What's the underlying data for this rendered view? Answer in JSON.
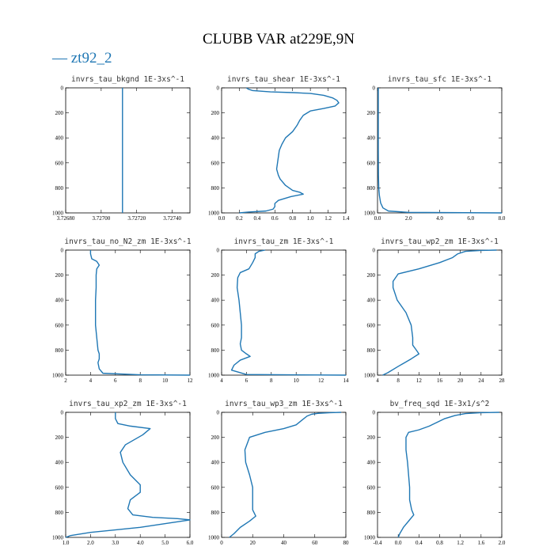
{
  "title": "CLUBB VAR at229E,9N",
  "legend": {
    "label": "— zt92_2",
    "color": "#1f77b4"
  },
  "chart_data": [
    {
      "type": "line",
      "title": "invrs_tau_bkgnd 1E-3xs^-1",
      "xlim": [
        3.7268,
        3.7275
      ],
      "ylim": [
        0,
        1000
      ],
      "y_inverted": true,
      "xticks": [
        3.7268,
        3.727,
        3.7272,
        3.7274
      ],
      "xtick_labels": [
        "3.72680",
        "3.72700",
        "3.72720",
        "3.72740"
      ],
      "yticks": [
        0,
        200,
        400,
        600,
        800,
        1000
      ],
      "series": [
        {
          "x": [
            3.72712,
            3.72712
          ],
          "y": [
            0,
            1000
          ]
        }
      ]
    },
    {
      "type": "line",
      "title": "invrs_tau_shear 1E-3xs^-1",
      "xlim": [
        0,
        1.4
      ],
      "ylim": [
        0,
        1000
      ],
      "y_inverted": true,
      "xticks": [
        0,
        0.2,
        0.4,
        0.6,
        0.8,
        1.0,
        1.2,
        1.4
      ],
      "xtick_labels": [
        "0.0",
        "0.2",
        "0.4",
        "0.6",
        "0.8",
        "1.0",
        "1.2",
        "1.4"
      ],
      "yticks": [
        0,
        200,
        400,
        600,
        800,
        1000
      ],
      "series": [
        {
          "x": [
            0.28,
            0.3,
            0.35,
            0.55,
            0.8,
            1.0,
            1.15,
            1.25,
            1.3,
            1.32,
            1.28,
            1.15,
            1.0,
            0.92,
            0.88,
            0.85,
            0.8,
            0.72,
            0.68,
            0.65,
            0.64,
            0.63,
            0.62,
            0.64,
            0.66,
            0.72,
            0.8,
            0.88,
            0.92,
            0.78,
            0.64,
            0.6,
            0.6,
            0.58,
            0.5,
            0.3,
            0.2
          ],
          "y": [
            0,
            10,
            22,
            32,
            38,
            45,
            60,
            80,
            100,
            120,
            145,
            165,
            185,
            220,
            260,
            300,
            350,
            400,
            450,
            500,
            550,
            600,
            650,
            700,
            730,
            780,
            820,
            835,
            850,
            870,
            900,
            925,
            950,
            970,
            985,
            993,
            1000
          ]
        }
      ]
    },
    {
      "type": "line",
      "title": "invrs_tau_sfc 1E-3xs^-1",
      "xlim": [
        0,
        8.0
      ],
      "ylim": [
        0,
        1000
      ],
      "y_inverted": true,
      "xticks": [
        0,
        2,
        4,
        6,
        8
      ],
      "xtick_labels": [
        "0.0",
        "2.0",
        "4.0",
        "6.0",
        "8.0"
      ],
      "yticks": [
        0,
        200,
        400,
        600,
        800,
        1000
      ],
      "series": [
        {
          "x": [
            0.05,
            0.05,
            0.06,
            0.08,
            0.12,
            0.2,
            0.35,
            0.7,
            2.0,
            8.0
          ],
          "y": [
            0,
            500,
            700,
            800,
            860,
            920,
            960,
            985,
            996,
            1000
          ]
        }
      ]
    },
    {
      "type": "line",
      "title": "invrs_tau_no_N2_zm 1E-3xs^-1",
      "xlim": [
        2,
        12
      ],
      "ylim": [
        0,
        1000
      ],
      "y_inverted": true,
      "xticks": [
        2,
        4,
        6,
        8,
        10,
        12
      ],
      "xtick_labels": [
        "2",
        "4",
        "6",
        "8",
        "10",
        "12"
      ],
      "yticks": [
        0,
        200,
        400,
        600,
        800,
        1000
      ],
      "series": [
        {
          "x": [
            4.0,
            4.0,
            4.1,
            4.5,
            4.7,
            4.5,
            4.45,
            4.45,
            4.4,
            4.4,
            4.4,
            4.5,
            4.6,
            4.7,
            4.7,
            4.6,
            4.7,
            5.0,
            8.0,
            12.0
          ],
          "y": [
            0,
            30,
            70,
            90,
            120,
            150,
            200,
            300,
            400,
            500,
            600,
            700,
            800,
            830,
            870,
            900,
            950,
            985,
            997,
            1000
          ]
        }
      ]
    },
    {
      "type": "line",
      "title": "invrs_tau_zm 1E-3xs^-1",
      "xlim": [
        4,
        14
      ],
      "ylim": [
        0,
        1000
      ],
      "y_inverted": true,
      "xticks": [
        4,
        6,
        8,
        10,
        12,
        14
      ],
      "xtick_labels": [
        "4",
        "6",
        "8",
        "10",
        "12",
        "14"
      ],
      "yticks": [
        0,
        200,
        400,
        600,
        800,
        1000
      ],
      "series": [
        {
          "x": [
            7.5,
            7.0,
            6.7,
            6.7,
            6.5,
            6.2,
            5.5,
            5.3,
            5.25,
            5.4,
            5.5,
            5.6,
            5.6,
            5.5,
            5.6,
            6.0,
            6.3,
            5.5,
            5.0,
            4.8,
            6.0,
            14.0
          ],
          "y": [
            0,
            10,
            30,
            60,
            100,
            150,
            180,
            220,
            300,
            400,
            500,
            600,
            700,
            750,
            800,
            830,
            850,
            880,
            920,
            960,
            995,
            1000
          ]
        }
      ]
    },
    {
      "type": "line",
      "title": "invrs_tau_wp2_zm 1E-3xs^-1",
      "xlim": [
        4,
        28
      ],
      "ylim": [
        0,
        1000
      ],
      "y_inverted": true,
      "xticks": [
        4,
        8,
        12,
        16,
        20,
        24,
        28
      ],
      "xtick_labels": [
        "4",
        "8",
        "12",
        "16",
        "20",
        "24",
        "28"
      ],
      "yticks": [
        0,
        200,
        400,
        600,
        800,
        1000
      ],
      "series": [
        {
          "x": [
            27.0,
            24.0,
            21.0,
            19.5,
            18.5,
            16.0,
            12.0,
            8.0,
            7.0,
            7.0,
            7.8,
            9.5,
            10.5,
            10.8,
            10.8,
            11.5,
            12.0,
            10.5,
            8.0,
            6.0,
            5.0
          ],
          "y": [
            0,
            3,
            10,
            30,
            60,
            100,
            150,
            190,
            250,
            300,
            400,
            500,
            600,
            700,
            760,
            800,
            830,
            870,
            930,
            980,
            1000
          ]
        }
      ]
    },
    {
      "type": "line",
      "title": "invrs_tau_xp2_zm 1E-3xs^-1",
      "xlim": [
        1.0,
        6.0
      ],
      "ylim": [
        0,
        1000
      ],
      "y_inverted": true,
      "xticks": [
        1,
        2,
        3,
        4,
        5,
        6
      ],
      "xtick_labels": [
        "1.0",
        "2.0",
        "3.0",
        "4.0",
        "5.0",
        "6.0"
      ],
      "yticks": [
        0,
        200,
        400,
        600,
        800,
        1000
      ],
      "series": [
        {
          "x": [
            3.0,
            3.0,
            3.1,
            3.6,
            4.4,
            4.1,
            3.4,
            3.2,
            3.3,
            3.6,
            4.0,
            4.0,
            3.6,
            3.5,
            3.7,
            4.5,
            5.5,
            6.0,
            4.0,
            2.0,
            1.2,
            1.0
          ],
          "y": [
            0,
            50,
            90,
            110,
            130,
            180,
            260,
            320,
            400,
            500,
            580,
            640,
            700,
            770,
            820,
            840,
            850,
            860,
            920,
            960,
            985,
            1000
          ]
        }
      ]
    },
    {
      "type": "line",
      "title": "invrs_tau_wp3_zm 1E-3xs^-1",
      "xlim": [
        0,
        80
      ],
      "ylim": [
        0,
        1000
      ],
      "y_inverted": true,
      "xticks": [
        0,
        20,
        40,
        60,
        80
      ],
      "xtick_labels": [
        "0",
        "20",
        "40",
        "60",
        "80"
      ],
      "yticks": [
        0,
        200,
        400,
        600,
        800,
        1000
      ],
      "series": [
        {
          "x": [
            77.0,
            70.0,
            62.0,
            58.0,
            55.0,
            52.0,
            48.0,
            40.0,
            28.0,
            18.0,
            15.0,
            15.5,
            18.0,
            20.0,
            20.0,
            20.0,
            22.0,
            18.0,
            12.0,
            8.0,
            5.0
          ],
          "y": [
            0,
            3,
            8,
            15,
            30,
            60,
            100,
            130,
            160,
            200,
            300,
            400,
            500,
            600,
            700,
            780,
            830,
            870,
            920,
            970,
            1000
          ]
        }
      ]
    },
    {
      "type": "line",
      "title": "bv_freq_sqd 1E-3x1/s^2",
      "xlim": [
        -0.4,
        2.0
      ],
      "ylim": [
        0,
        1000
      ],
      "y_inverted": true,
      "xticks": [
        -0.4,
        0,
        0.4,
        0.8,
        1.2,
        1.6,
        2.0
      ],
      "xtick_labels": [
        "-0.4",
        "0.0",
        "0.4",
        "0.8",
        "1.2",
        "1.6",
        "2.0"
      ],
      "yticks": [
        0,
        200,
        400,
        600,
        800,
        1000
      ],
      "series": [
        {
          "x": [
            1.95,
            1.6,
            1.3,
            1.1,
            0.9,
            0.75,
            0.6,
            0.4,
            0.2,
            0.15,
            0.15,
            0.18,
            0.2,
            0.22,
            0.22,
            0.26,
            0.3,
            0.22,
            0.1,
            0.03,
            0.0
          ],
          "y": [
            0,
            3,
            10,
            25,
            50,
            80,
            110,
            140,
            160,
            200,
            300,
            400,
            500,
            600,
            700,
            780,
            820,
            860,
            920,
            970,
            1000
          ]
        }
      ]
    }
  ]
}
